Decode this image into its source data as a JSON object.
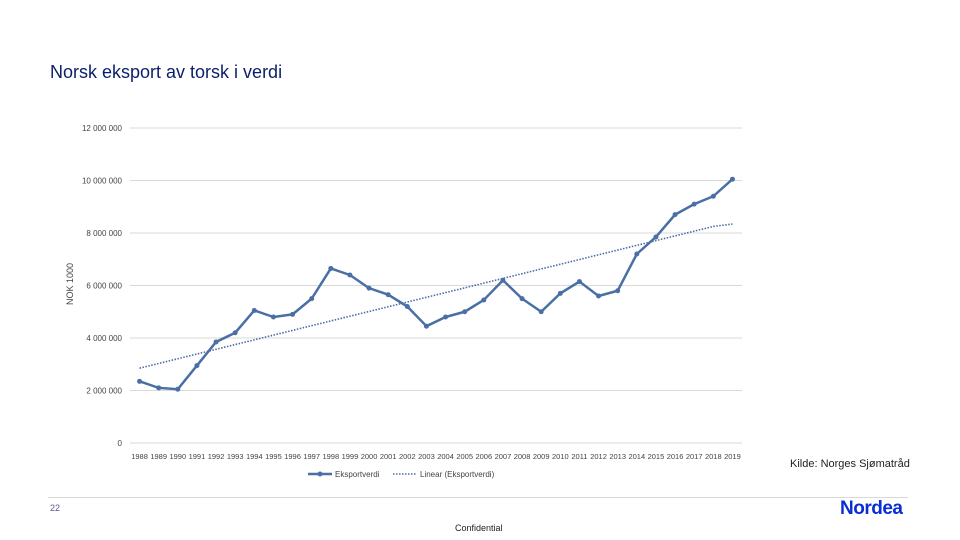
{
  "slide": {
    "title": "Norsk eksport av torsk i verdi",
    "source": "Kilde: Norges Sjømatråd",
    "slide_number": "22",
    "footer": "Confidential",
    "logo": "Nordea"
  },
  "chart_data": {
    "type": "line",
    "title": "",
    "xlabel": "",
    "ylabel": "NOK 1000",
    "ylim": [
      0,
      12000000
    ],
    "yticks": [
      0,
      2000000,
      4000000,
      6000000,
      8000000,
      10000000,
      12000000
    ],
    "ytick_labels": [
      "0",
      "2 000 000",
      "4 000 000",
      "6 000 000",
      "8 000 000",
      "10 000 000",
      "12 000 000"
    ],
    "grid": true,
    "legend_position": "bottom",
    "categories": [
      "1988",
      "1989",
      "1990",
      "1991",
      "1992",
      "1993",
      "1994",
      "1995",
      "1996",
      "1997",
      "1998",
      "1999",
      "2000",
      "2001",
      "2002",
      "2003",
      "2004",
      "2005",
      "2006",
      "2007",
      "2008",
      "2009",
      "2010",
      "2011",
      "2012",
      "2013",
      "2014",
      "2015",
      "2016",
      "2017",
      "2018",
      "2019"
    ],
    "series": [
      {
        "name": "Eksportverdi",
        "color": "#4a6fa5",
        "values": [
          2350000,
          2100000,
          2050000,
          2950000,
          3850000,
          4200000,
          5050000,
          4800000,
          4900000,
          5500000,
          6650000,
          6400000,
          5900000,
          5650000,
          5200000,
          4450000,
          4800000,
          5000000,
          5450000,
          6200000,
          5500000,
          5000000,
          5700000,
          6150000,
          5600000,
          5800000,
          7200000,
          7850000,
          8700000,
          9100000,
          9400000,
          10050000
        ]
      },
      {
        "name": "Linear (Eksportverdi)",
        "color": "#4a6fa5",
        "style": "dotted",
        "values": [
          2850000,
          3030000,
          3210000,
          3390000,
          3570000,
          3750000,
          3930000,
          4110000,
          4290000,
          4470000,
          4650000,
          4830000,
          5010000,
          5190000,
          5370000,
          5550000,
          5730000,
          5910000,
          6090000,
          6270000,
          6450000,
          6630000,
          6810000,
          6990000,
          7170000,
          7350000,
          7530000,
          7710000,
          7890000,
          8070000,
          8250000,
          8340000
        ]
      }
    ]
  }
}
